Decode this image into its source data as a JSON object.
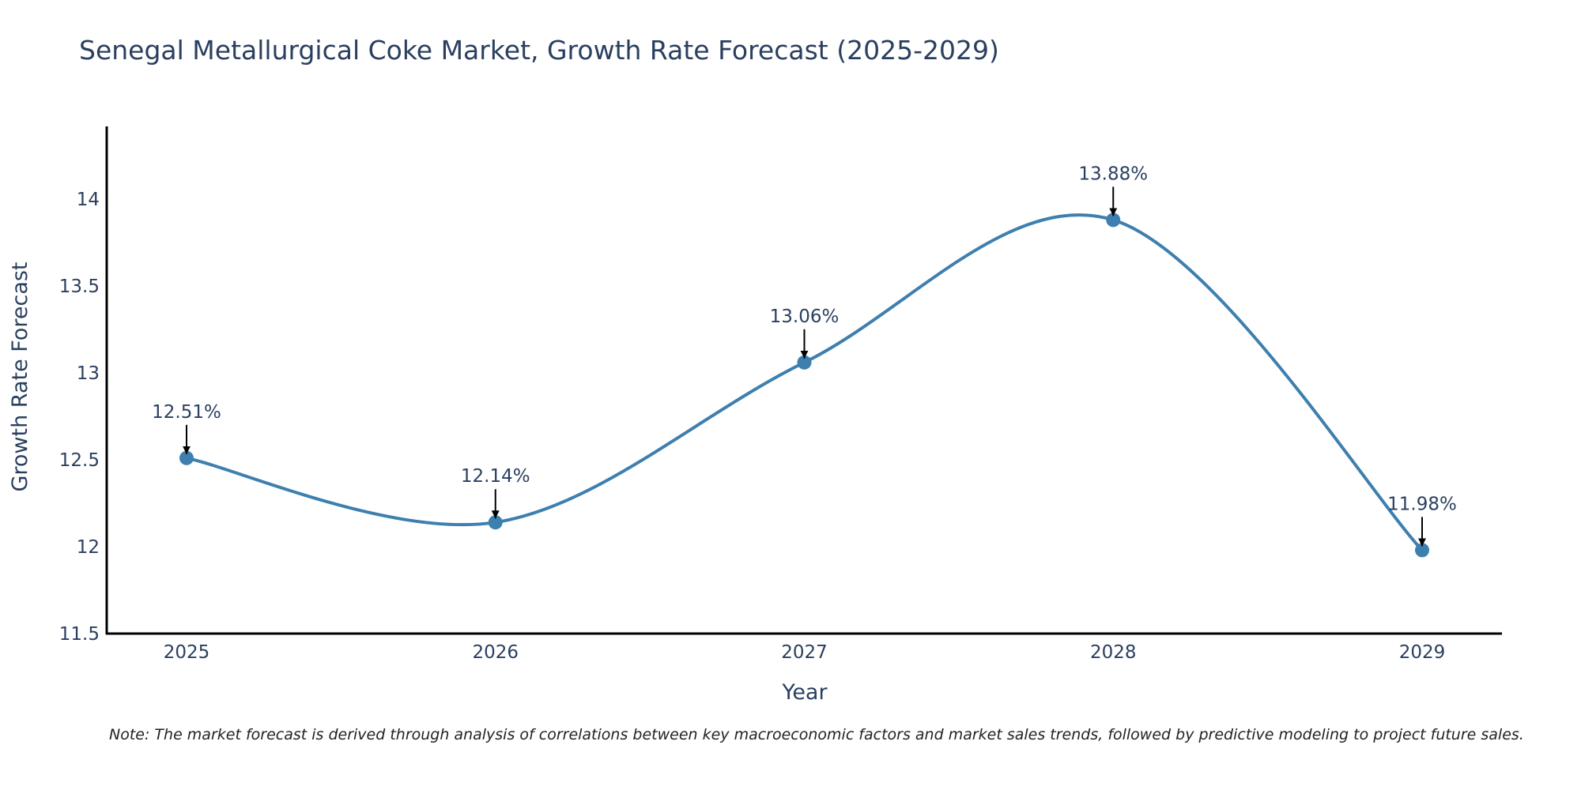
{
  "chart_data": {
    "type": "line",
    "title": "Senegal Metallurgical Coke Market, Growth Rate Forecast (2025-2029)",
    "xlabel": "Year",
    "ylabel": "Growth Rate Forecast",
    "categories": [
      "2025",
      "2026",
      "2027",
      "2028",
      "2029"
    ],
    "series": [
      {
        "name": "Growth Rate Forecast",
        "values": [
          12.51,
          12.14,
          13.06,
          13.88,
          11.98
        ]
      }
    ],
    "data_labels": [
      "12.51%",
      "12.14%",
      "13.06%",
      "13.88%",
      "11.98%"
    ],
    "ylim": [
      11.5,
      14.38
    ],
    "yticks": [
      11.5,
      12,
      12.5,
      13,
      13.5,
      14
    ],
    "ytick_labels": [
      "11.5",
      "12",
      "12.5",
      "13",
      "13.5",
      "14"
    ],
    "line_shape": "spline",
    "grid": false,
    "line_color": "#3d7fae",
    "marker_color": "#3d7fae",
    "arrow_color": "#000000"
  },
  "note": "Note: The market forecast is derived through analysis of correlations between key macroeconomic factors and market sales trends, followed by predictive modeling to project future sales."
}
